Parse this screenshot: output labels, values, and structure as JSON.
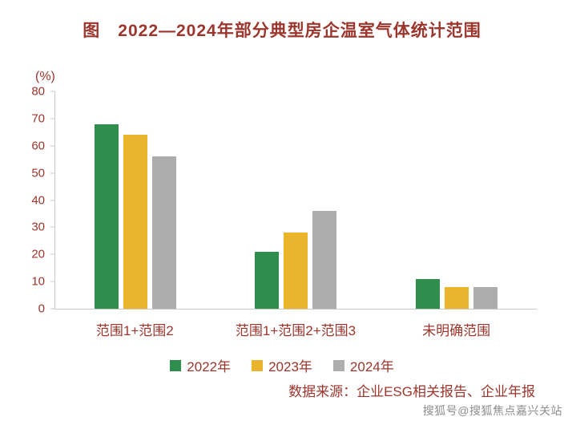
{
  "title": "图　2022—2024年部分典型房企温室气体统计范围",
  "chart_data": {
    "type": "bar",
    "title": "2022—2024年部分典型房企温室气体统计范围",
    "unit_label": "(%)",
    "categories": [
      "范围1+范围2",
      "范围1+范围2+范围3",
      "未明确范围"
    ],
    "series": [
      {
        "name": "2022年",
        "color": "#2F8E4E",
        "values": [
          68,
          21,
          11
        ]
      },
      {
        "name": "2023年",
        "color": "#EAB42C",
        "values": [
          64,
          28,
          8
        ]
      },
      {
        "name": "2024年",
        "color": "#ADADAD",
        "values": [
          56,
          36,
          8
        ]
      }
    ],
    "ylim": [
      0,
      80
    ],
    "ytick_step": 10,
    "yticks": [
      0,
      10,
      20,
      30,
      40,
      50,
      60,
      70,
      80
    ],
    "grid": false,
    "legend_position": "bottom"
  },
  "footer": {
    "source": "数据来源：企业ESG相关报告、企业年报"
  },
  "watermark": "搜狐号@搜狐焦点嘉兴关站",
  "colors": {
    "accent": "#9C352C",
    "axis": "#C8C8C8"
  }
}
